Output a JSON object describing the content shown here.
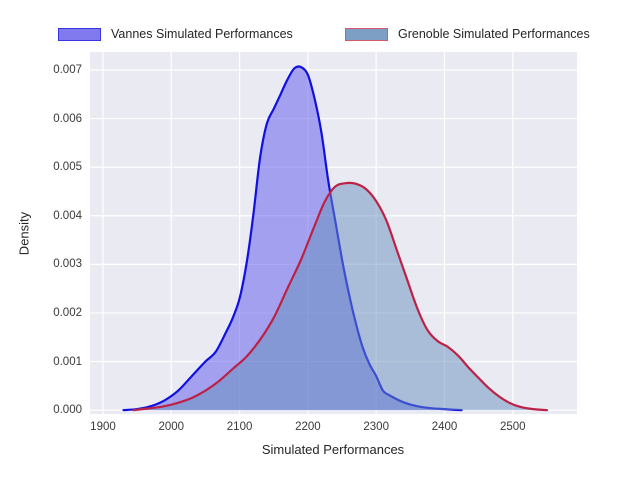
{
  "figure": {
    "background": "#ffffff",
    "text_color": "#262626"
  },
  "legend": {
    "items": [
      {
        "label": "Vannes Simulated Performances",
        "patch_fill": "#8179ee",
        "patch_border": "#3b35e0"
      },
      {
        "label": "Grenoble Simulated Performances",
        "patch_fill": "#7e9fc5",
        "patch_border": "#d4596b"
      }
    ]
  },
  "chart_data": {
    "type": "area",
    "title": "",
    "xlabel": "Simulated Performances",
    "ylabel": "Density",
    "xlim": [
      1881,
      2594
    ],
    "ylim": [
      -8e-05,
      0.00737
    ],
    "x_ticks": [
      1900,
      2000,
      2100,
      2200,
      2300,
      2400,
      2500
    ],
    "y_ticks": [
      0.0,
      0.001,
      0.002,
      0.003,
      0.004,
      0.005,
      0.006,
      0.007
    ],
    "y_tick_decimals": 3,
    "grid": true,
    "plot_bg": "#eaeaf2",
    "grid_color": "#ffffff",
    "legend_position": "top",
    "series": [
      {
        "name": "Vannes Simulated Performances",
        "line_color": "#1010e0",
        "fill_color": "#5a55eb",
        "fill_opacity": 0.5,
        "peak": {
          "x": 2190,
          "y": 0.00706
        },
        "points": [
          [
            1930,
            0
          ],
          [
            1950,
            2e-05
          ],
          [
            1970,
            8e-05
          ],
          [
            1990,
            0.0002
          ],
          [
            2010,
            0.0004
          ],
          [
            2030,
            0.0007
          ],
          [
            2050,
            0.001
          ],
          [
            2065,
            0.0012
          ],
          [
            2080,
            0.0016
          ],
          [
            2090,
            0.0019
          ],
          [
            2100,
            0.0023
          ],
          [
            2110,
            0.003
          ],
          [
            2120,
            0.004
          ],
          [
            2130,
            0.0052
          ],
          [
            2140,
            0.0059
          ],
          [
            2150,
            0.0062
          ],
          [
            2160,
            0.0065
          ],
          [
            2170,
            0.0068
          ],
          [
            2180,
            0.00703
          ],
          [
            2190,
            0.00706
          ],
          [
            2200,
            0.0069
          ],
          [
            2210,
            0.0064
          ],
          [
            2220,
            0.0057
          ],
          [
            2230,
            0.0047
          ],
          [
            2240,
            0.0039
          ],
          [
            2250,
            0.0031
          ],
          [
            2260,
            0.0024
          ],
          [
            2270,
            0.0018
          ],
          [
            2280,
            0.0013
          ],
          [
            2290,
            0.00095
          ],
          [
            2300,
            0.0007
          ],
          [
            2310,
            0.0004
          ],
          [
            2320,
            0.0003
          ],
          [
            2340,
            0.00016
          ],
          [
            2360,
            8e-05
          ],
          [
            2380,
            4e-05
          ],
          [
            2400,
            2e-05
          ],
          [
            2425,
            0
          ]
        ]
      },
      {
        "name": "Grenoble Simulated Performances",
        "line_color": "#bd2145",
        "fill_color": "#6890be",
        "fill_opacity": 0.5,
        "peak": {
          "x": 2262,
          "y": 0.00467
        },
        "points": [
          [
            1945,
            0
          ],
          [
            1970,
            4e-05
          ],
          [
            1990,
            8e-05
          ],
          [
            2010,
            0.00015
          ],
          [
            2030,
            0.00025
          ],
          [
            2050,
            0.0004
          ],
          [
            2070,
            0.0006
          ],
          [
            2090,
            0.00085
          ],
          [
            2110,
            0.0011
          ],
          [
            2130,
            0.00145
          ],
          [
            2150,
            0.0019
          ],
          [
            2170,
            0.0025
          ],
          [
            2190,
            0.0031
          ],
          [
            2210,
            0.0038
          ],
          [
            2225,
            0.0043
          ],
          [
            2240,
            0.0046
          ],
          [
            2255,
            0.00467
          ],
          [
            2270,
            0.00466
          ],
          [
            2285,
            0.00455
          ],
          [
            2300,
            0.0043
          ],
          [
            2315,
            0.0039
          ],
          [
            2330,
            0.0033
          ],
          [
            2345,
            0.0027
          ],
          [
            2360,
            0.0021
          ],
          [
            2375,
            0.00165
          ],
          [
            2390,
            0.00142
          ],
          [
            2405,
            0.0013
          ],
          [
            2420,
            0.00112
          ],
          [
            2435,
            0.00088
          ],
          [
            2450,
            0.00066
          ],
          [
            2465,
            0.00045
          ],
          [
            2480,
            0.00028
          ],
          [
            2495,
            0.00015
          ],
          [
            2510,
            7e-05
          ],
          [
            2530,
            2e-05
          ],
          [
            2550,
            0
          ]
        ]
      }
    ]
  }
}
